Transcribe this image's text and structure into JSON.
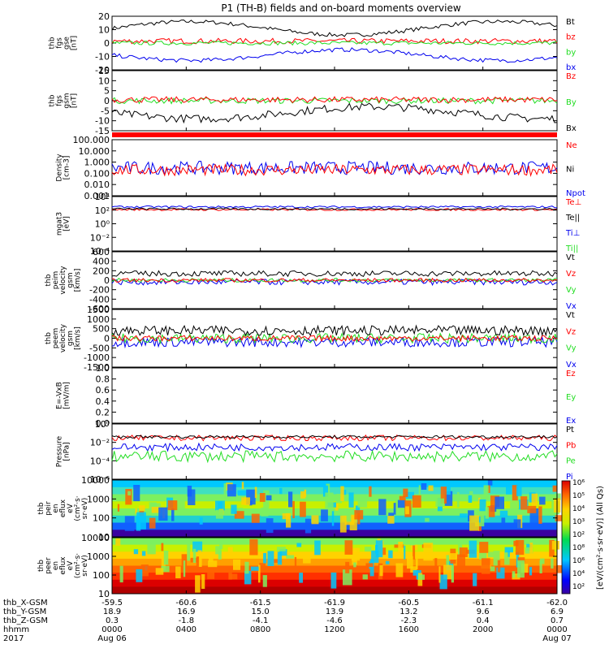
{
  "title": "P1 (TH-B) fields and on-board moments overview",
  "colors": {
    "black": "#000000",
    "red": "#ff0000",
    "green": "#22dd22",
    "blue": "#0000ee"
  },
  "panels": [
    {
      "id": "fgs-gse",
      "ylabel": [
        "thb",
        "fgs",
        "gse",
        "[nT]"
      ],
      "ylim": [
        -20,
        20
      ],
      "ticks": [
        "20",
        "10",
        "0",
        "-10",
        "-20"
      ],
      "tick_values": [
        20,
        10,
        0,
        -10,
        -20
      ],
      "legend": [
        {
          "text": "Bt",
          "color": "black"
        },
        {
          "text": "bz",
          "color": "red"
        },
        {
          "text": "by",
          "color": "green"
        },
        {
          "text": "bx",
          "color": "blue"
        }
      ]
    },
    {
      "id": "fgs-gsm",
      "ylabel": [
        "thb",
        "fgs",
        "gsm",
        "[nT]"
      ],
      "ylim": [
        -15,
        15
      ],
      "ticks": [
        "15",
        "10",
        "5",
        "0",
        "-5",
        "-10",
        "-15"
      ],
      "tick_values": [
        15,
        10,
        5,
        0,
        -5,
        -10,
        -15
      ],
      "legend": [
        {
          "text": "Bz",
          "color": "red"
        },
        {
          "text": "By",
          "color": "green"
        },
        {
          "text": "Bx",
          "color": "black"
        }
      ]
    },
    {
      "id": "density",
      "ylabel": [
        "Density",
        "[cm-3]"
      ],
      "ylim": [
        0.001,
        100
      ],
      "log": true,
      "ticks": [
        "100.000",
        "10.000",
        "1.000",
        "0.100",
        "0.010",
        "0.001"
      ],
      "tick_values": [
        100,
        10,
        1,
        0.1,
        0.01,
        0.001
      ],
      "legend": [
        {
          "text": "Ne",
          "color": "red"
        },
        {
          "text": "Ni",
          "color": "black"
        },
        {
          "text": "Npot",
          "color": "blue"
        }
      ]
    },
    {
      "id": "temperature",
      "ylabel": [
        "mgat3",
        "[eV]"
      ],
      "ylim": [
        0.0001,
        10000
      ],
      "log": true,
      "ticks": [
        "10⁴",
        "10²",
        "10⁰",
        "10⁻²",
        "10⁻⁴"
      ],
      "tick_values": [
        10000,
        100,
        1,
        0.01,
        0.0001
      ],
      "legend": [
        {
          "text": "Te⊥",
          "color": "red"
        },
        {
          "text": "Te||",
          "color": "black"
        },
        {
          "text": "Ti⊥",
          "color": "blue"
        },
        {
          "text": "Ti||",
          "color": "green"
        }
      ]
    },
    {
      "id": "peim-velocity",
      "ylabel": [
        "thb",
        "peim",
        "velocity",
        "gsm",
        "[km/s]"
      ],
      "ylim": [
        -600,
        600
      ],
      "ticks": [
        "600",
        "400",
        "200",
        "0",
        "-200",
        "-400",
        "-600"
      ],
      "tick_values": [
        600,
        400,
        200,
        0,
        -200,
        -400,
        -600
      ],
      "legend": [
        {
          "text": "Vt",
          "color": "black"
        },
        {
          "text": "Vz",
          "color": "red"
        },
        {
          "text": "Vy",
          "color": "green"
        },
        {
          "text": "Vx",
          "color": "blue"
        }
      ]
    },
    {
      "id": "peem-velocity",
      "ylabel": [
        "thb",
        "peem",
        "velocity",
        "gsm",
        "[km/s]"
      ],
      "ylim": [
        -1500,
        1500
      ],
      "ticks": [
        "1500",
        "1000",
        "500",
        "0",
        "-500",
        "-1000",
        "-1500"
      ],
      "tick_values": [
        1500,
        1000,
        500,
        0,
        -500,
        -1000,
        -1500
      ],
      "legend": [
        {
          "text": "Vt",
          "color": "black"
        },
        {
          "text": "Vz",
          "color": "red"
        },
        {
          "text": "Vy",
          "color": "green"
        },
        {
          "text": "Vx",
          "color": "blue"
        }
      ]
    },
    {
      "id": "efield",
      "ylabel": [
        "E=-VxB",
        "[mV/m]"
      ],
      "ylim": [
        0,
        1
      ],
      "ticks": [
        "1.0",
        "0.8",
        "0.6",
        "0.4",
        "0.2",
        "0.0"
      ],
      "tick_values": [
        1.0,
        0.8,
        0.6,
        0.4,
        0.2,
        0.0
      ],
      "legend": [
        {
          "text": "Ez",
          "color": "red"
        },
        {
          "text": "Ey",
          "color": "green"
        },
        {
          "text": "Ex",
          "color": "blue"
        }
      ]
    },
    {
      "id": "pressure",
      "ylabel": [
        "Pressure",
        "[nPa]"
      ],
      "ylim": [
        1e-06,
        1
      ],
      "log": true,
      "ticks": [
        "10⁰",
        "10⁻²",
        "10⁻⁴",
        "10⁻⁶"
      ],
      "tick_values": [
        1,
        0.01,
        0.0001,
        1e-06
      ],
      "legend": [
        {
          "text": "Pt",
          "color": "black"
        },
        {
          "text": "Pb",
          "color": "red"
        },
        {
          "text": "Pe",
          "color": "green"
        },
        {
          "text": "Pi",
          "color": "blue"
        }
      ]
    },
    {
      "id": "peir-spec",
      "ylabel": [
        "thb",
        "peir",
        "en",
        "eflux",
        "eV",
        "(cm²·s·",
        "sr·eV)"
      ],
      "ylim": [
        10,
        10000
      ],
      "log": true,
      "ticks": [
        "10000",
        "1000",
        "100",
        "10"
      ],
      "tick_values": [
        10000,
        1000,
        100,
        10
      ]
    },
    {
      "id": "peer-spec",
      "ylabel": [
        "thb",
        "peer",
        "en",
        "eflux",
        "eV",
        "(cm²·s·",
        "sr·eV)"
      ],
      "ylim": [
        10,
        10000
      ],
      "log": true,
      "ticks": [
        "10000",
        "1000",
        "100",
        "10"
      ],
      "tick_values": [
        10000,
        1000,
        100,
        10
      ]
    }
  ],
  "colorbar": {
    "ticks": [
      "10⁶",
      "10⁵",
      "10⁴",
      "10³",
      "10²",
      "10⁸",
      "10⁶",
      "10⁴",
      "10²"
    ],
    "label": "[eV/(cm²·s·sr·eV)] (All Qs)"
  },
  "time_axis": {
    "rows": [
      {
        "name": "thb_X-GSM",
        "values": [
          "-59.5",
          "-60.6",
          "-61.5",
          "-61.9",
          "-60.5",
          "-61.1",
          "-62.0"
        ]
      },
      {
        "name": "thb_Y-GSM",
        "values": [
          "18.9",
          "16.9",
          "15.0",
          "13.9",
          "13.2",
          "9.6",
          "6.9"
        ]
      },
      {
        "name": "thb_Z-GSM",
        "values": [
          "0.3",
          "-1.8",
          "-4.1",
          "-4.6",
          "-2.3",
          "0.4",
          "0.7"
        ]
      },
      {
        "name": "hhmm",
        "values": [
          "0000",
          "0400",
          "0800",
          "1200",
          "1600",
          "2000",
          "0000"
        ]
      },
      {
        "name": "2017",
        "values": [
          "Aug 06",
          "",
          "",
          "",
          "",
          "",
          "Aug 07"
        ]
      }
    ]
  }
}
